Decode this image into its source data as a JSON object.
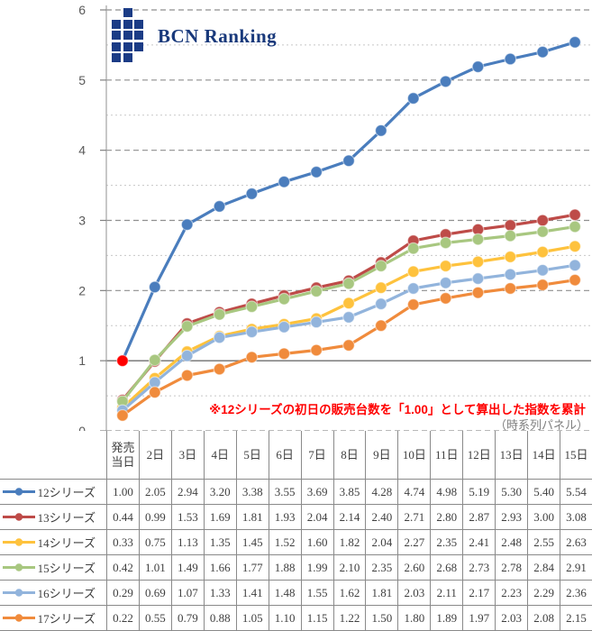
{
  "logo": {
    "text": "BCN Ranking",
    "text_color": "#19397B",
    "square_color": "#1B3C86"
  },
  "annotations": {
    "footnote": "※12シリーズの初日の販売台数を「1.00」として算出した指数を累計",
    "footnote_color": "#FF0000",
    "panel_note": "（時系列パネル）",
    "panel_note_color": "#7F7F7F"
  },
  "axis": {
    "y_tick_labels": [
      "0",
      "1",
      "2",
      "3",
      "4",
      "5",
      "6"
    ],
    "label_color": "#595959"
  },
  "chart_data": {
    "type": "line",
    "title": "",
    "xlabel": "",
    "ylabel": "",
    "ylim": [
      0,
      6
    ],
    "y_major_step": 1,
    "y_minor_step": 0.5,
    "grid": true,
    "legend_position": "table-left",
    "baseline_value": 1.0,
    "categories": [
      "発売当日",
      "2日",
      "3日",
      "4日",
      "5日",
      "6日",
      "7日",
      "8日",
      "9日",
      "10日",
      "11日",
      "12日",
      "13日",
      "14日",
      "15日"
    ],
    "series": [
      {
        "name": "12シリーズ",
        "color": "#4A7DBD",
        "values": [
          1.0,
          2.05,
          2.94,
          3.2,
          3.38,
          3.55,
          3.69,
          3.85,
          4.28,
          4.74,
          4.98,
          5.19,
          5.3,
          5.4,
          5.54
        ]
      },
      {
        "name": "13シリーズ",
        "color": "#BE4B48",
        "values": [
          0.44,
          0.99,
          1.53,
          1.69,
          1.81,
          1.93,
          2.04,
          2.14,
          2.4,
          2.71,
          2.8,
          2.87,
          2.93,
          3.0,
          3.08
        ]
      },
      {
        "name": "14シリーズ",
        "color": "#FEC23D",
        "values": [
          0.33,
          0.75,
          1.13,
          1.35,
          1.45,
          1.52,
          1.6,
          1.82,
          2.04,
          2.27,
          2.35,
          2.41,
          2.48,
          2.55,
          2.63
        ]
      },
      {
        "name": "15シリーズ",
        "color": "#A8C780",
        "values": [
          0.42,
          1.01,
          1.49,
          1.66,
          1.77,
          1.88,
          1.99,
          2.1,
          2.35,
          2.6,
          2.68,
          2.73,
          2.78,
          2.84,
          2.91
        ]
      },
      {
        "name": "16シリーズ",
        "color": "#92B4DC",
        "values": [
          0.29,
          0.69,
          1.07,
          1.33,
          1.41,
          1.48,
          1.55,
          1.62,
          1.81,
          2.03,
          2.11,
          2.17,
          2.23,
          2.29,
          2.36
        ]
      },
      {
        "name": "17シリーズ",
        "color": "#F08B3C",
        "values": [
          0.22,
          0.55,
          0.79,
          0.88,
          1.05,
          1.1,
          1.15,
          1.22,
          1.5,
          1.8,
          1.89,
          1.97,
          2.03,
          2.08,
          2.15
        ]
      }
    ],
    "highlight_point": {
      "series": "12シリーズ",
      "category": "発売当日",
      "value": 1.0,
      "color": "#FF0000"
    },
    "value_format": "0.00"
  }
}
